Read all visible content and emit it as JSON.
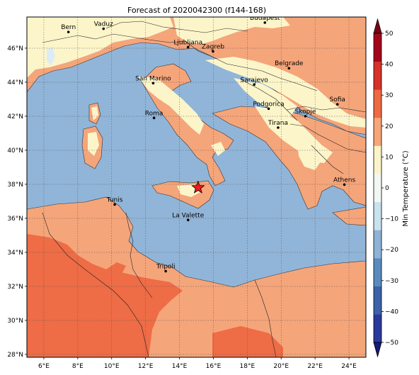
{
  "title": "Forecast of 2020042300 (f144-168)",
  "x_ticks": [
    "6°E",
    "8°E",
    "10°E",
    "12°E",
    "14°E",
    "16°E",
    "18°E",
    "20°E",
    "22°E",
    "24°E"
  ],
  "y_ticks": [
    "28°N",
    "30°N",
    "32°N",
    "34°N",
    "36°N",
    "38°N",
    "40°N",
    "42°N",
    "44°N",
    "46°N"
  ],
  "colorbar": {
    "label": "Min Temperature (°C)",
    "ticks": [
      "−50",
      "−40",
      "−30",
      "−20",
      "−10",
      "0",
      "10",
      "20",
      "30",
      "40",
      "50"
    ],
    "colors": [
      "#131a7c",
      "#2a3a9c",
      "#3d62a8",
      "#5a8bbd",
      "#8fb3d6",
      "#c8e2ef",
      "#f2f7f4",
      "#fbf4c8",
      "#f7a678",
      "#ee6a42",
      "#d6322a",
      "#a3061c",
      "#7a0018"
    ]
  },
  "map_colors": {
    "sea": "#91b5d8",
    "cool": "#fcf5ca",
    "mild": "#f5a57a",
    "warm": "#ee6c46",
    "lake": "#dcecf6"
  },
  "cities": [
    {
      "name": "Bern",
      "lon": 7.45,
      "lat": 46.95
    },
    {
      "name": "Vaduz",
      "lon": 9.52,
      "lat": 47.14
    },
    {
      "name": "Budapest",
      "lon": 19.04,
      "lat": 47.5
    },
    {
      "name": "Ljubljana",
      "lon": 14.51,
      "lat": 46.06
    },
    {
      "name": "Zagreb",
      "lon": 15.98,
      "lat": 45.81
    },
    {
      "name": "Belgrade",
      "lon": 20.46,
      "lat": 44.82
    },
    {
      "name": "San Marino",
      "lon": 12.45,
      "lat": 43.94
    },
    {
      "name": "Sarajevo",
      "lon": 18.41,
      "lat": 43.86
    },
    {
      "name": "Sofia",
      "lon": 23.32,
      "lat": 42.7
    },
    {
      "name": "Podgorica",
      "lon": 19.26,
      "lat": 42.44
    },
    {
      "name": "Skopje",
      "lon": 21.43,
      "lat": 42.0
    },
    {
      "name": "Roma",
      "lon": 12.5,
      "lat": 41.9
    },
    {
      "name": "Tirana",
      "lon": 19.82,
      "lat": 41.33
    },
    {
      "name": "Athens",
      "lon": 23.73,
      "lat": 37.98
    },
    {
      "name": "Tunis",
      "lon": 10.18,
      "lat": 36.81
    },
    {
      "name": "La Valette",
      "lon": 14.51,
      "lat": 35.9
    },
    {
      "name": "Tripoli",
      "lon": 13.19,
      "lat": 32.89
    }
  ],
  "marker": {
    "name": "forecast-point",
    "lon": 15.1,
    "lat": 37.8
  }
}
